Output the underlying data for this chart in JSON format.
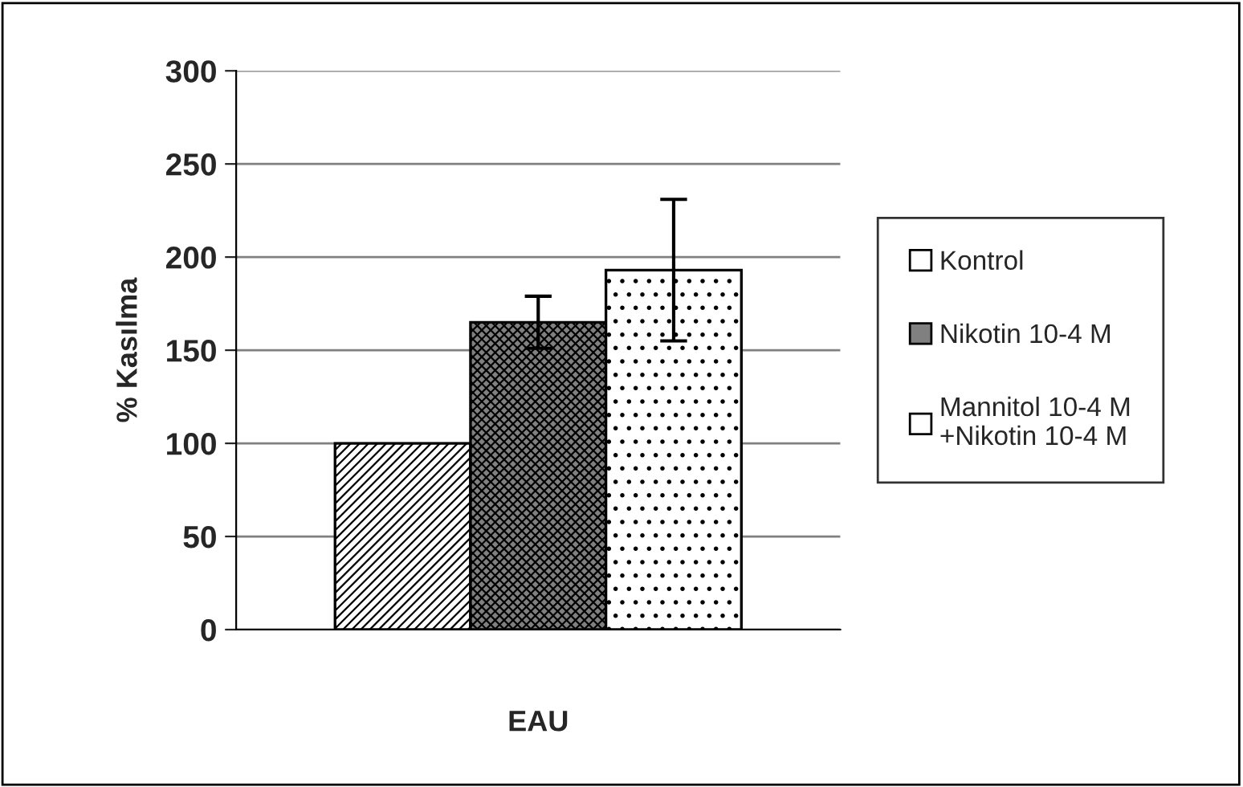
{
  "chart_data": {
    "type": "bar",
    "ylabel": "% Kasılma",
    "xlabel": "EAU",
    "categories": [
      null,
      null,
      null
    ],
    "series": [
      {
        "name": "Kontrol",
        "color": "#ffffff",
        "values": [
          100,
          null,
          null
        ]
      },
      {
        "name": "Nikotin 10-4 M",
        "color": "#808080",
        "values": [
          null,
          165,
          null
        ],
        "errors": [
          null,
          14,
          null
        ]
      },
      {
        "name": "Mannitol 10-4 M\n+Nikotin 10-4 M",
        "color": "#ffffff",
        "values": [
          null,
          null,
          193
        ],
        "errors": [
          null,
          null,
          38
        ]
      }
    ],
    "ylim": [
      0,
      300
    ],
    "yticks": [
      0,
      50,
      100,
      150,
      200,
      250,
      300
    ],
    "grid": "y",
    "legend": "right"
  }
}
